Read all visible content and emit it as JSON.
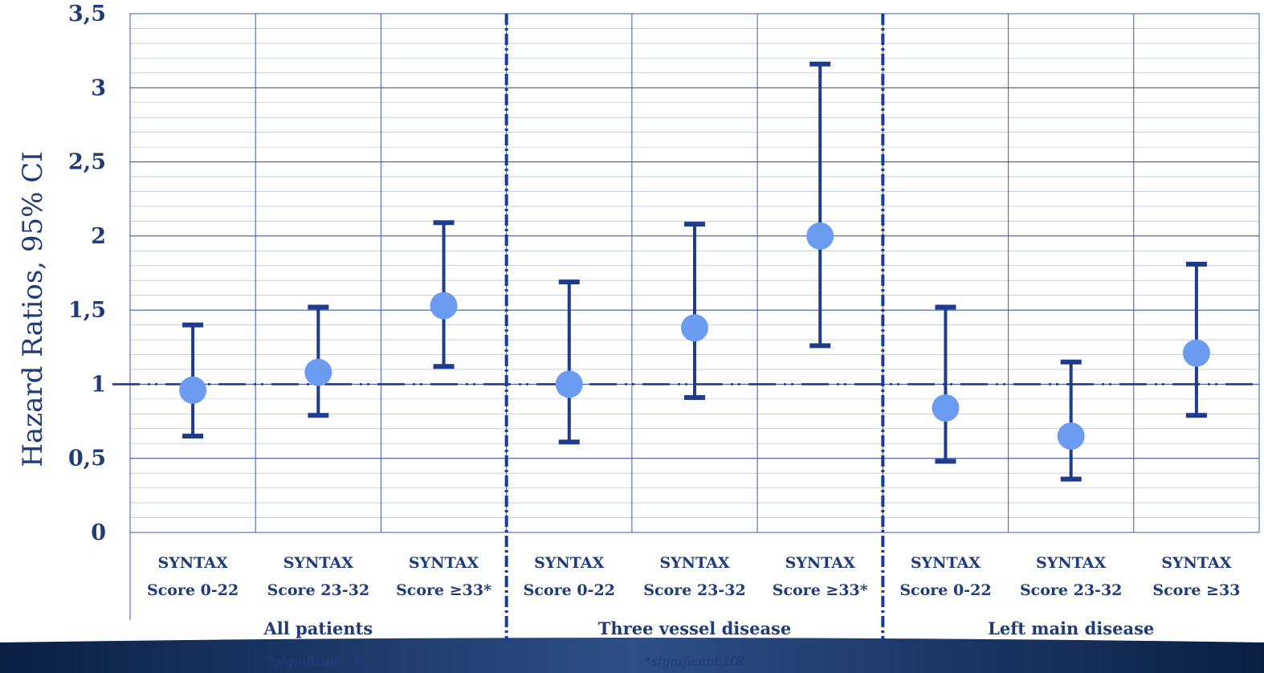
{
  "chart_data": {
    "type": "scatter",
    "ylabel": "Hazard Ratios, 95% CI",
    "xlabel": "",
    "ylim": [
      0,
      3.5
    ],
    "y_ticks": [
      {
        "value": 0,
        "label": "0"
      },
      {
        "value": 0.5,
        "label": "0,5"
      },
      {
        "value": 1,
        "label": "1"
      },
      {
        "value": 1.5,
        "label": "1,5"
      },
      {
        "value": 2,
        "label": "2"
      },
      {
        "value": 2.5,
        "label": "2,5"
      },
      {
        "value": 3,
        "label": "3"
      },
      {
        "value": 3.5,
        "label": "3,5"
      }
    ],
    "reference_line": 1,
    "grid": true,
    "groups": [
      {
        "label": "All patients",
        "footnote": "*significant HR",
        "categories": [
          {
            "line1": "SYNTAX",
            "line2": "Score 0-22",
            "hr": 0.96,
            "lower": 0.65,
            "upper": 1.4
          },
          {
            "line1": "SYNTAX",
            "line2": "Score 23-32",
            "hr": 1.08,
            "lower": 0.79,
            "upper": 1.52
          },
          {
            "line1": "SYNTAX",
            "line2": "Score ≥33*",
            "hr": 1.53,
            "lower": 1.12,
            "upper": 2.09
          }
        ]
      },
      {
        "label": "Three  vessel disease",
        "footnote": "*significant HR",
        "categories": [
          {
            "line1": "SYNTAX",
            "line2": "Score 0-22",
            "hr": 1.0,
            "lower": 0.61,
            "upper": 1.69
          },
          {
            "line1": "SYNTAX",
            "line2": "Score 23-32",
            "hr": 1.38,
            "lower": 0.91,
            "upper": 2.08
          },
          {
            "line1": "SYNTAX",
            "line2": "Score ≥33*",
            "hr": 2.0,
            "lower": 1.26,
            "upper": 3.16
          }
        ]
      },
      {
        "label": "Left main disease",
        "footnote": "",
        "categories": [
          {
            "line1": "SYNTAX",
            "line2": "Score 0-22",
            "hr": 0.84,
            "lower": 0.48,
            "upper": 1.52
          },
          {
            "line1": "SYNTAX",
            "line2": "Score 23-32",
            "hr": 0.65,
            "lower": 0.36,
            "upper": 1.15
          },
          {
            "line1": "SYNTAX",
            "line2": "Score ≥33",
            "hr": 1.21,
            "lower": 0.79,
            "upper": 1.81
          }
        ]
      }
    ],
    "colors": {
      "point": "#6b9cf2",
      "whisker": "#1f3b8c",
      "grid": "#3f5aa8",
      "text": "#1f3b7a",
      "divider": "#1a3a99",
      "bottom_band": "#0d2a55"
    }
  }
}
